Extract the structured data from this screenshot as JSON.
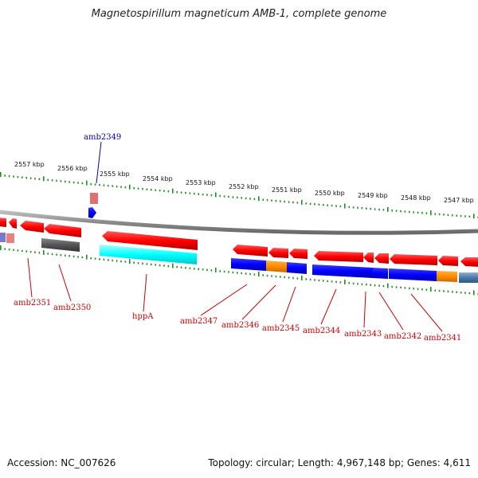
{
  "title": "Magnetospirillum magneticum AMB-1, complete genome",
  "footer": {
    "accession": "Accession: NC_007626",
    "summary": "Topology: circular; Length: 4,967,148 bp; Genes: 4,611"
  },
  "colors": {
    "backbone": "#8a8a8a",
    "tick": "#228b22",
    "forward_gene": "#ff0000",
    "reverse_gene": "#0000ff",
    "gray_gene": "#555555",
    "cyan_gene": "#00ffff",
    "orange_gene": "#ff8c00",
    "label_red": "#cc0000",
    "label_blue": "#0000aa"
  },
  "ruler": {
    "labels": [
      "2557 kbp",
      "2556 kbp",
      "2555 kbp",
      "2554 kbp",
      "2553 kbp",
      "2552 kbp",
      "2551 kbp",
      "2550 kbp",
      "2549 kbp",
      "2548 kbp",
      "2547 kbp"
    ]
  },
  "gene_labels": {
    "top": [
      "amb2349"
    ],
    "bottom": [
      "amb2351",
      "amb2350",
      "hppA",
      "amb2347",
      "amb2346",
      "amb2345",
      "amb2344",
      "amb2343",
      "amb2342",
      "amb2341"
    ]
  }
}
